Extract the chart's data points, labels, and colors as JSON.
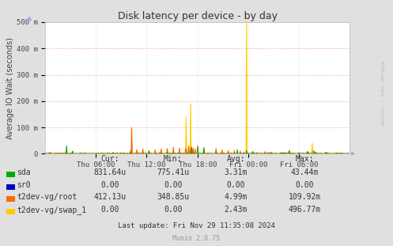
{
  "title": "Disk latency per device - by day",
  "ylabel": "Average IO Wait (seconds)",
  "background_color": "#e0e0e0",
  "plot_background": "#ffffff",
  "grid_color_h": "#ff9999",
  "grid_color_v": "#ccccff",
  "grid_style": ":",
  "ylim": [
    0,
    0.5
  ],
  "ytick_vals": [
    0,
    0.1,
    0.2,
    0.3,
    0.4,
    0.5
  ],
  "ytick_labels": [
    "0",
    "100 m",
    "200 m",
    "300 m",
    "400 m",
    "500 m"
  ],
  "xtick_labels": [
    "Thu 06:00",
    "Thu 12:00",
    "Thu 18:00",
    "Fri 00:00",
    "Fri 06:00"
  ],
  "xtick_pos": [
    0.167,
    0.333,
    0.5,
    0.667,
    0.833
  ],
  "series": {
    "sda": {
      "color": "#00aa00",
      "linewidth": 0.8
    },
    "sr0": {
      "color": "#0000cc",
      "linewidth": 0.8
    },
    "t2dev-vg/root": {
      "color": "#ff6600",
      "linewidth": 0.8
    },
    "t2dev-vg/swap_1": {
      "color": "#ffcc00",
      "linewidth": 0.8
    }
  },
  "legend_items": [
    {
      "label": "sda",
      "color": "#00aa00"
    },
    {
      "label": "sr0",
      "color": "#0000cc"
    },
    {
      "label": "t2dev-vg/root",
      "color": "#ff6600"
    },
    {
      "label": "t2dev-vg/swap_1",
      "color": "#ffcc00"
    }
  ],
  "stats_headers": [
    "Cur:",
    "Min:",
    "Avg:",
    "Max:"
  ],
  "stats_rows": [
    [
      "sda",
      "831.64u",
      "775.41u",
      "3.31m",
      "43.44m"
    ],
    [
      "sr0",
      "0.00",
      "0.00",
      "0.00",
      "0.00"
    ],
    [
      "t2dev-vg/root",
      "412.13u",
      "348.85u",
      "4.99m",
      "109.92m"
    ],
    [
      "t2dev-vg/swap_1",
      "0.00",
      "0.00",
      "2.43m",
      "496.77m"
    ]
  ],
  "last_update": "Last update: Fri Nov 29 11:35:08 2024",
  "munin_version": "Munin 2.0.75",
  "watermark": "RRDTOOL / TOBI OETIKER"
}
